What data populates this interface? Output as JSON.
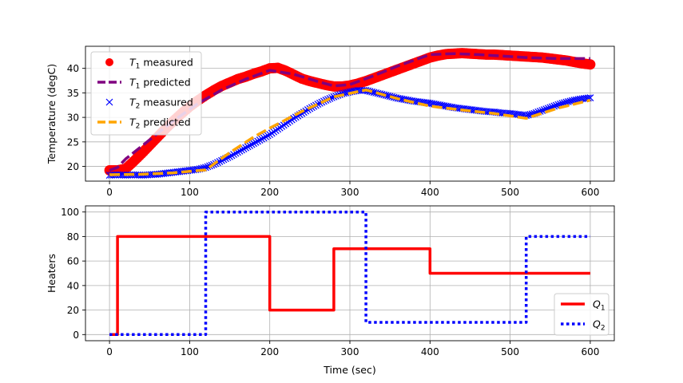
{
  "chart_data": [
    {
      "type": "line",
      "xlabel": "",
      "ylabel": "Temperature (degC)",
      "xlim": [
        -30,
        630
      ],
      "ylim": [
        17,
        44.5
      ],
      "xticks": [
        0,
        100,
        200,
        300,
        400,
        500,
        600
      ],
      "yticks": [
        20,
        25,
        30,
        35,
        40
      ],
      "grid": true,
      "legend_position": "upper-left",
      "series": [
        {
          "name": "T1 measured",
          "legend": {
            "sym": "T",
            "sub": "1",
            "rest": " measured"
          },
          "style": "markers",
          "color": "#ff0000",
          "x": [
            0,
            10,
            20,
            30,
            40,
            50,
            60,
            70,
            80,
            90,
            100,
            110,
            120,
            130,
            140,
            150,
            160,
            170,
            180,
            190,
            200,
            210,
            220,
            230,
            240,
            250,
            260,
            270,
            280,
            290,
            300,
            310,
            320,
            330,
            340,
            350,
            360,
            370,
            380,
            390,
            400,
            410,
            420,
            430,
            440,
            450,
            460,
            470,
            480,
            490,
            500,
            510,
            520,
            530,
            540,
            550,
            560,
            570,
            580,
            590,
            600
          ],
          "y": [
            19.2,
            19.2,
            19.5,
            21.0,
            22.6,
            24.3,
            26.0,
            27.7,
            29.3,
            30.8,
            32.2,
            33.4,
            34.5,
            35.5,
            36.4,
            37.1,
            37.8,
            38.3,
            38.9,
            39.4,
            40.0,
            40.1,
            39.5,
            38.7,
            37.9,
            37.4,
            37.0,
            36.6,
            36.3,
            36.3,
            36.5,
            36.9,
            37.4,
            38.0,
            38.6,
            39.2,
            39.8,
            40.4,
            41.0,
            41.6,
            42.2,
            42.6,
            42.9,
            43.0,
            43.1,
            43.0,
            42.9,
            42.8,
            42.8,
            42.7,
            42.6,
            42.5,
            42.4,
            42.3,
            42.2,
            42.0,
            41.8,
            41.6,
            41.3,
            41.0,
            40.8
          ]
        },
        {
          "name": "T1 predicted",
          "legend": {
            "sym": "T",
            "sub": "1",
            "rest": " predicted"
          },
          "style": "dashed",
          "color": "#800080",
          "x": [
            0,
            10,
            20,
            50,
            80,
            110,
            140,
            170,
            200,
            230,
            260,
            280,
            300,
            330,
            360,
            400,
            430,
            460,
            520,
            560,
            600
          ],
          "y": [
            19.2,
            19.8,
            21.5,
            25.4,
            29.3,
            32.8,
            35.6,
            37.8,
            39.6,
            38.8,
            37.3,
            36.4,
            36.7,
            38.5,
            40.5,
            42.8,
            43.0,
            42.8,
            42.2,
            42.0,
            42.0
          ]
        },
        {
          "name": "T2 measured",
          "legend": {
            "sym": "T",
            "sub": "2",
            "rest": " measured"
          },
          "style": "x-markers",
          "color": "#0000ff",
          "x": [
            0,
            10,
            20,
            30,
            40,
            50,
            60,
            70,
            80,
            90,
            100,
            110,
            120,
            130,
            140,
            150,
            160,
            170,
            180,
            190,
            200,
            210,
            220,
            230,
            240,
            250,
            260,
            270,
            280,
            290,
            300,
            310,
            320,
            330,
            340,
            350,
            360,
            370,
            380,
            390,
            400,
            410,
            420,
            430,
            440,
            450,
            460,
            470,
            480,
            490,
            500,
            510,
            520,
            530,
            540,
            550,
            560,
            570,
            580,
            590,
            600
          ],
          "y": [
            18.2,
            18.3,
            18.2,
            18.3,
            18.2,
            18.3,
            18.4,
            18.6,
            18.8,
            19.0,
            19.2,
            19.4,
            19.8,
            20.4,
            21.2,
            22.0,
            22.9,
            23.8,
            24.7,
            25.6,
            26.5,
            27.6,
            28.7,
            29.8,
            30.8,
            31.8,
            32.7,
            33.5,
            34.2,
            34.8,
            35.2,
            35.5,
            35.5,
            35.1,
            34.7,
            34.3,
            33.9,
            33.6,
            33.3,
            33.1,
            32.9,
            32.6,
            32.3,
            32.0,
            31.8,
            31.6,
            31.4,
            31.2,
            31.1,
            30.9,
            30.8,
            30.6,
            30.4,
            30.8,
            31.4,
            32.0,
            32.6,
            33.1,
            33.5,
            33.8,
            34.0
          ]
        },
        {
          "name": "T2 predicted",
          "legend": {
            "sym": "T",
            "sub": "2",
            "rest": " predicted"
          },
          "style": "dashed",
          "color": "#ffa500",
          "x": [
            0,
            40,
            80,
            120,
            150,
            180,
            200,
            240,
            280,
            320,
            360,
            400,
            440,
            480,
            520,
            560,
            600
          ],
          "y": [
            18.3,
            18.4,
            18.7,
            19.3,
            22.8,
            26.0,
            27.8,
            31.2,
            34.2,
            35.6,
            33.8,
            32.3,
            31.5,
            30.8,
            29.8,
            31.9,
            33.5
          ]
        }
      ]
    },
    {
      "type": "line",
      "xlabel": "Time (sec)",
      "ylabel": "Heaters",
      "xlim": [
        -30,
        630
      ],
      "ylim": [
        -5,
        105
      ],
      "xticks": [
        0,
        100,
        200,
        300,
        400,
        500,
        600
      ],
      "yticks": [
        0,
        20,
        40,
        60,
        80,
        100
      ],
      "grid": true,
      "legend_position": "lower-right",
      "series": [
        {
          "name": "Q1",
          "legend": {
            "sym": "Q",
            "sub": "1",
            "rest": ""
          },
          "style": "solid",
          "color": "#ff0000",
          "x": [
            0,
            10,
            10,
            200,
            200,
            280,
            280,
            400,
            400,
            600
          ],
          "y": [
            0,
            0,
            80,
            80,
            20,
            20,
            70,
            70,
            50,
            50
          ]
        },
        {
          "name": "Q2",
          "legend": {
            "sym": "Q",
            "sub": "2",
            "rest": ""
          },
          "style": "dotted",
          "color": "#0000ff",
          "x": [
            0,
            120,
            120,
            320,
            320,
            520,
            520,
            600
          ],
          "y": [
            0,
            0,
            100,
            100,
            10,
            10,
            80,
            80
          ]
        }
      ]
    }
  ]
}
